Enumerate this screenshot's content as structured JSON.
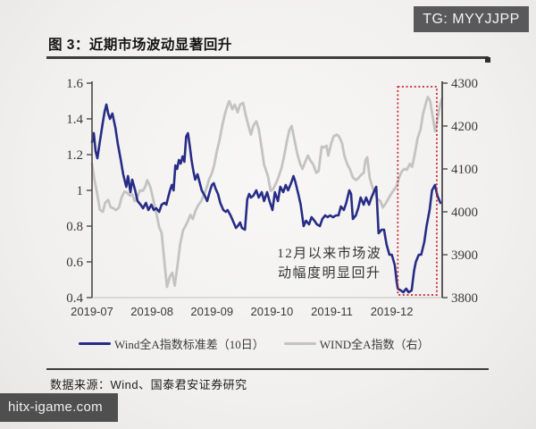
{
  "badge": {
    "text": "TG: MYYJJPP"
  },
  "figure": {
    "title": "图 3：近期市场波动显著回升"
  },
  "chart_data": {
    "type": "line",
    "grid": false,
    "legend_position": "bottom",
    "x_axis": {
      "range": [
        0,
        5.84
      ],
      "tick_positions": [
        0,
        1,
        2,
        3,
        4,
        5
      ],
      "tick_labels": [
        "2019-07",
        "2019-08",
        "2019-09",
        "2019-10",
        "2019-11",
        "2019-12"
      ]
    },
    "left_axis": {
      "range": [
        0.4,
        1.6
      ],
      "tick_values": [
        0.4,
        0.6,
        0.8,
        1.0,
        1.2,
        1.4,
        1.6
      ],
      "tick_labels": [
        "0.4",
        "0.6",
        "0.8",
        "1",
        "1.2",
        "1.4",
        "1.6"
      ]
    },
    "right_axis": {
      "range": [
        3800,
        4300
      ],
      "tick_values": [
        3800,
        3900,
        4000,
        4100,
        4200,
        4300
      ],
      "tick_labels": [
        "3800",
        "3900",
        "4000",
        "4100",
        "4200",
        "4300"
      ]
    },
    "series": [
      {
        "id": "wind-a-stddev-10d",
        "name": "Wind全A指数标准差（10日）",
        "axis": "left",
        "color": "#272c86",
        "width": 2.6,
        "points": [
          [
            0.0,
            1.27
          ],
          [
            0.03,
            1.32
          ],
          [
            0.06,
            1.22
          ],
          [
            0.09,
            1.18
          ],
          [
            0.13,
            1.27
          ],
          [
            0.18,
            1.38
          ],
          [
            0.21,
            1.44
          ],
          [
            0.24,
            1.48
          ],
          [
            0.27,
            1.43
          ],
          [
            0.3,
            1.4
          ],
          [
            0.34,
            1.43
          ],
          [
            0.39,
            1.35
          ],
          [
            0.43,
            1.26
          ],
          [
            0.48,
            1.17
          ],
          [
            0.52,
            1.09
          ],
          [
            0.57,
            1.02
          ],
          [
            0.6,
            1.08
          ],
          [
            0.64,
            0.99
          ],
          [
            0.67,
            1.06
          ],
          [
            0.72,
            1.0
          ],
          [
            0.76,
            0.94
          ],
          [
            0.81,
            0.92
          ],
          [
            0.85,
            0.9
          ],
          [
            0.9,
            0.93
          ],
          [
            0.94,
            0.89
          ],
          [
            0.99,
            0.92
          ],
          [
            1.03,
            0.89
          ],
          [
            1.07,
            0.9
          ],
          [
            1.12,
            0.88
          ],
          [
            1.16,
            0.92
          ],
          [
            1.21,
            0.93
          ],
          [
            1.24,
            0.92
          ],
          [
            1.27,
            0.96
          ],
          [
            1.3,
            1.0
          ],
          [
            1.33,
            1.03
          ],
          [
            1.36,
            1.0
          ],
          [
            1.39,
            1.14
          ],
          [
            1.42,
            1.12
          ],
          [
            1.45,
            1.17
          ],
          [
            1.48,
            1.15
          ],
          [
            1.51,
            1.19
          ],
          [
            1.54,
            1.16
          ],
          [
            1.57,
            1.3
          ],
          [
            1.6,
            1.32
          ],
          [
            1.63,
            1.25
          ],
          [
            1.66,
            1.17
          ],
          [
            1.69,
            1.11
          ],
          [
            1.72,
            1.06
          ],
          [
            1.76,
            1.09
          ],
          [
            1.79,
            1.05
          ],
          [
            1.83,
            1.0
          ],
          [
            1.88,
            0.97
          ],
          [
            1.92,
            0.94
          ],
          [
            1.97,
            1.0
          ],
          [
            2.0,
            1.03
          ],
          [
            2.03,
            1.04
          ],
          [
            2.06,
            1.01
          ],
          [
            2.1,
            0.98
          ],
          [
            2.14,
            0.93
          ],
          [
            2.19,
            0.89
          ],
          [
            2.23,
            0.88
          ],
          [
            2.26,
            0.89
          ],
          [
            2.31,
            0.86
          ],
          [
            2.35,
            0.83
          ],
          [
            2.4,
            0.79
          ],
          [
            2.43,
            0.8
          ],
          [
            2.47,
            0.82
          ],
          [
            2.5,
            0.79
          ],
          [
            2.55,
            0.78
          ],
          [
            2.59,
            0.95
          ],
          [
            2.62,
            0.98
          ],
          [
            2.65,
            0.96
          ],
          [
            2.69,
            0.97
          ],
          [
            2.74,
            1.0
          ],
          [
            2.78,
            0.96
          ],
          [
            2.83,
            0.99
          ],
          [
            2.87,
            0.94
          ],
          [
            2.92,
            0.99
          ],
          [
            2.96,
            0.94
          ],
          [
            3.01,
            0.89
          ],
          [
            3.05,
            0.99
          ],
          [
            3.1,
            0.94
          ],
          [
            3.14,
            1.02
          ],
          [
            3.19,
            0.99
          ],
          [
            3.23,
            1.03
          ],
          [
            3.27,
            1.0
          ],
          [
            3.32,
            1.04
          ],
          [
            3.36,
            1.08
          ],
          [
            3.39,
            1.05
          ],
          [
            3.44,
            0.98
          ],
          [
            3.48,
            0.92
          ],
          [
            3.53,
            0.8
          ],
          [
            3.57,
            0.83
          ],
          [
            3.62,
            0.81
          ],
          [
            3.66,
            0.85
          ],
          [
            3.71,
            0.83
          ],
          [
            3.75,
            0.81
          ],
          [
            3.8,
            0.8
          ],
          [
            3.84,
            0.84
          ],
          [
            3.89,
            0.86
          ],
          [
            3.93,
            0.85
          ],
          [
            3.97,
            0.86
          ],
          [
            4.02,
            0.85
          ],
          [
            4.07,
            0.86
          ],
          [
            4.11,
            0.86
          ],
          [
            4.15,
            0.91
          ],
          [
            4.2,
            0.89
          ],
          [
            4.24,
            0.93
          ],
          [
            4.29,
            1.0
          ],
          [
            4.32,
            0.98
          ],
          [
            4.35,
            0.84
          ],
          [
            4.4,
            0.86
          ],
          [
            4.44,
            0.9
          ],
          [
            4.48,
            0.96
          ],
          [
            4.53,
            0.92
          ],
          [
            4.57,
            0.96
          ],
          [
            4.62,
            0.92
          ],
          [
            4.66,
            0.96
          ],
          [
            4.71,
            1.0
          ],
          [
            4.74,
            1.02
          ],
          [
            4.78,
            0.76
          ],
          [
            4.83,
            0.78
          ],
          [
            4.87,
            0.78
          ],
          [
            4.91,
            0.7
          ],
          [
            4.96,
            0.64
          ],
          [
            5.0,
            0.64
          ],
          [
            5.05,
            0.58
          ],
          [
            5.08,
            0.49
          ],
          [
            5.1,
            0.45
          ],
          [
            5.15,
            0.44
          ],
          [
            5.19,
            0.43
          ],
          [
            5.24,
            0.45
          ],
          [
            5.28,
            0.43
          ],
          [
            5.33,
            0.44
          ],
          [
            5.37,
            0.55
          ],
          [
            5.4,
            0.6
          ],
          [
            5.45,
            0.64
          ],
          [
            5.49,
            0.64
          ],
          [
            5.54,
            0.71
          ],
          [
            5.58,
            0.8
          ],
          [
            5.63,
            0.89
          ],
          [
            5.67,
            1.0
          ],
          [
            5.72,
            1.03
          ],
          [
            5.76,
            0.97
          ],
          [
            5.81,
            0.93
          ]
        ]
      },
      {
        "id": "wind-a-index",
        "name": "WIND全A指数（右）",
        "axis": "right",
        "color": "#c3c3c3",
        "width": 2.8,
        "points": [
          [
            0.0,
            4112
          ],
          [
            0.04,
            4075
          ],
          [
            0.09,
            4040
          ],
          [
            0.13,
            4005
          ],
          [
            0.18,
            4000
          ],
          [
            0.22,
            4021
          ],
          [
            0.27,
            4028
          ],
          [
            0.31,
            4011
          ],
          [
            0.36,
            4008
          ],
          [
            0.4,
            4004
          ],
          [
            0.45,
            4010
          ],
          [
            0.49,
            4032
          ],
          [
            0.54,
            4047
          ],
          [
            0.58,
            4045
          ],
          [
            0.63,
            4038
          ],
          [
            0.67,
            4041
          ],
          [
            0.71,
            4025
          ],
          [
            0.76,
            4036
          ],
          [
            0.8,
            4050
          ],
          [
            0.85,
            4049
          ],
          [
            0.89,
            4059
          ],
          [
            0.92,
            4074
          ],
          [
            0.97,
            4059
          ],
          [
            1.0,
            4042
          ],
          [
            1.04,
            4017
          ],
          [
            1.09,
            3985
          ],
          [
            1.12,
            3964
          ],
          [
            1.16,
            3951
          ],
          [
            1.21,
            3880
          ],
          [
            1.25,
            3825
          ],
          [
            1.3,
            3850
          ],
          [
            1.34,
            3858
          ],
          [
            1.38,
            3828
          ],
          [
            1.43,
            3880
          ],
          [
            1.47,
            3925
          ],
          [
            1.52,
            3957
          ],
          [
            1.57,
            3970
          ],
          [
            1.6,
            3979
          ],
          [
            1.64,
            3993
          ],
          [
            1.68,
            3983
          ],
          [
            1.73,
            4004
          ],
          [
            1.77,
            4015
          ],
          [
            1.82,
            4025
          ],
          [
            1.86,
            4038
          ],
          [
            1.91,
            4055
          ],
          [
            1.95,
            4075
          ],
          [
            2.0,
            4090
          ],
          [
            2.04,
            4110
          ],
          [
            2.08,
            4140
          ],
          [
            2.13,
            4170
          ],
          [
            2.17,
            4200
          ],
          [
            2.22,
            4230
          ],
          [
            2.26,
            4248
          ],
          [
            2.29,
            4258
          ],
          [
            2.34,
            4239
          ],
          [
            2.38,
            4250
          ],
          [
            2.43,
            4232
          ],
          [
            2.47,
            4250
          ],
          [
            2.52,
            4254
          ],
          [
            2.56,
            4228
          ],
          [
            2.61,
            4200
          ],
          [
            2.65,
            4180
          ],
          [
            2.69,
            4201
          ],
          [
            2.74,
            4211
          ],
          [
            2.78,
            4193
          ],
          [
            2.83,
            4148
          ],
          [
            2.87,
            4110
          ],
          [
            2.93,
            4085
          ],
          [
            2.98,
            4049
          ],
          [
            3.02,
            4053
          ],
          [
            3.07,
            4067
          ],
          [
            3.11,
            4081
          ],
          [
            3.16,
            4102
          ],
          [
            3.2,
            4127
          ],
          [
            3.25,
            4165
          ],
          [
            3.29,
            4190
          ],
          [
            3.33,
            4200
          ],
          [
            3.38,
            4165
          ],
          [
            3.42,
            4137
          ],
          [
            3.47,
            4112
          ],
          [
            3.51,
            4100
          ],
          [
            3.56,
            4118
          ],
          [
            3.6,
            4131
          ],
          [
            3.65,
            4118
          ],
          [
            3.69,
            4110
          ],
          [
            3.74,
            4091
          ],
          [
            3.78,
            4095
          ],
          [
            3.83,
            4152
          ],
          [
            3.87,
            4150
          ],
          [
            3.91,
            4154
          ],
          [
            3.94,
            4131
          ],
          [
            3.99,
            4160
          ],
          [
            4.03,
            4176
          ],
          [
            4.08,
            4180
          ],
          [
            4.12,
            4176
          ],
          [
            4.17,
            4160
          ],
          [
            4.21,
            4130
          ],
          [
            4.26,
            4110
          ],
          [
            4.3,
            4100
          ],
          [
            4.35,
            4080
          ],
          [
            4.4,
            4074
          ],
          [
            4.44,
            4078
          ],
          [
            4.48,
            4085
          ],
          [
            4.53,
            4091
          ],
          [
            4.56,
            4120
          ],
          [
            4.59,
            4127
          ],
          [
            4.63,
            4080
          ],
          [
            4.67,
            4060
          ],
          [
            4.72,
            4043
          ],
          [
            4.76,
            4030
          ],
          [
            4.81,
            4025
          ],
          [
            4.85,
            4010
          ],
          [
            4.9,
            4020
          ],
          [
            4.94,
            4030
          ],
          [
            4.99,
            4042
          ],
          [
            5.03,
            4050
          ],
          [
            5.08,
            4060
          ],
          [
            5.12,
            4080
          ],
          [
            5.17,
            4095
          ],
          [
            5.21,
            4100
          ],
          [
            5.25,
            4098
          ],
          [
            5.3,
            4112
          ],
          [
            5.34,
            4105
          ],
          [
            5.39,
            4140
          ],
          [
            5.43,
            4172
          ],
          [
            5.48,
            4192
          ],
          [
            5.52,
            4228
          ],
          [
            5.57,
            4255
          ],
          [
            5.6,
            4268
          ],
          [
            5.64,
            4258
          ],
          [
            5.69,
            4215
          ],
          [
            5.72,
            4188
          ],
          [
            5.75,
            4205
          ],
          [
            5.78,
            4232
          ],
          [
            5.81,
            4252
          ],
          [
            5.84,
            4265
          ]
        ]
      }
    ],
    "annotation": {
      "lines": [
        "12月以来市场波",
        "动幅度明显回升"
      ],
      "x": 3.96,
      "y": 0.625
    },
    "highlight_box": {
      "x0": 5.1,
      "x1": 5.75,
      "y0": 0.415,
      "y1": 1.58,
      "color": "#c9232b"
    }
  },
  "footer": {
    "source": "数据来源：Wind、国泰君安证券研究"
  },
  "watermark": {
    "text": "hitx-igame.com"
  },
  "colors": {
    "stddev_line": "#272c86",
    "index_line": "#c3c3c3",
    "highlight_box": "#c9232b",
    "axis": "#4a4a4a",
    "badge_bg": "#59595b",
    "watermark_bg": "#4f4f4f"
  }
}
